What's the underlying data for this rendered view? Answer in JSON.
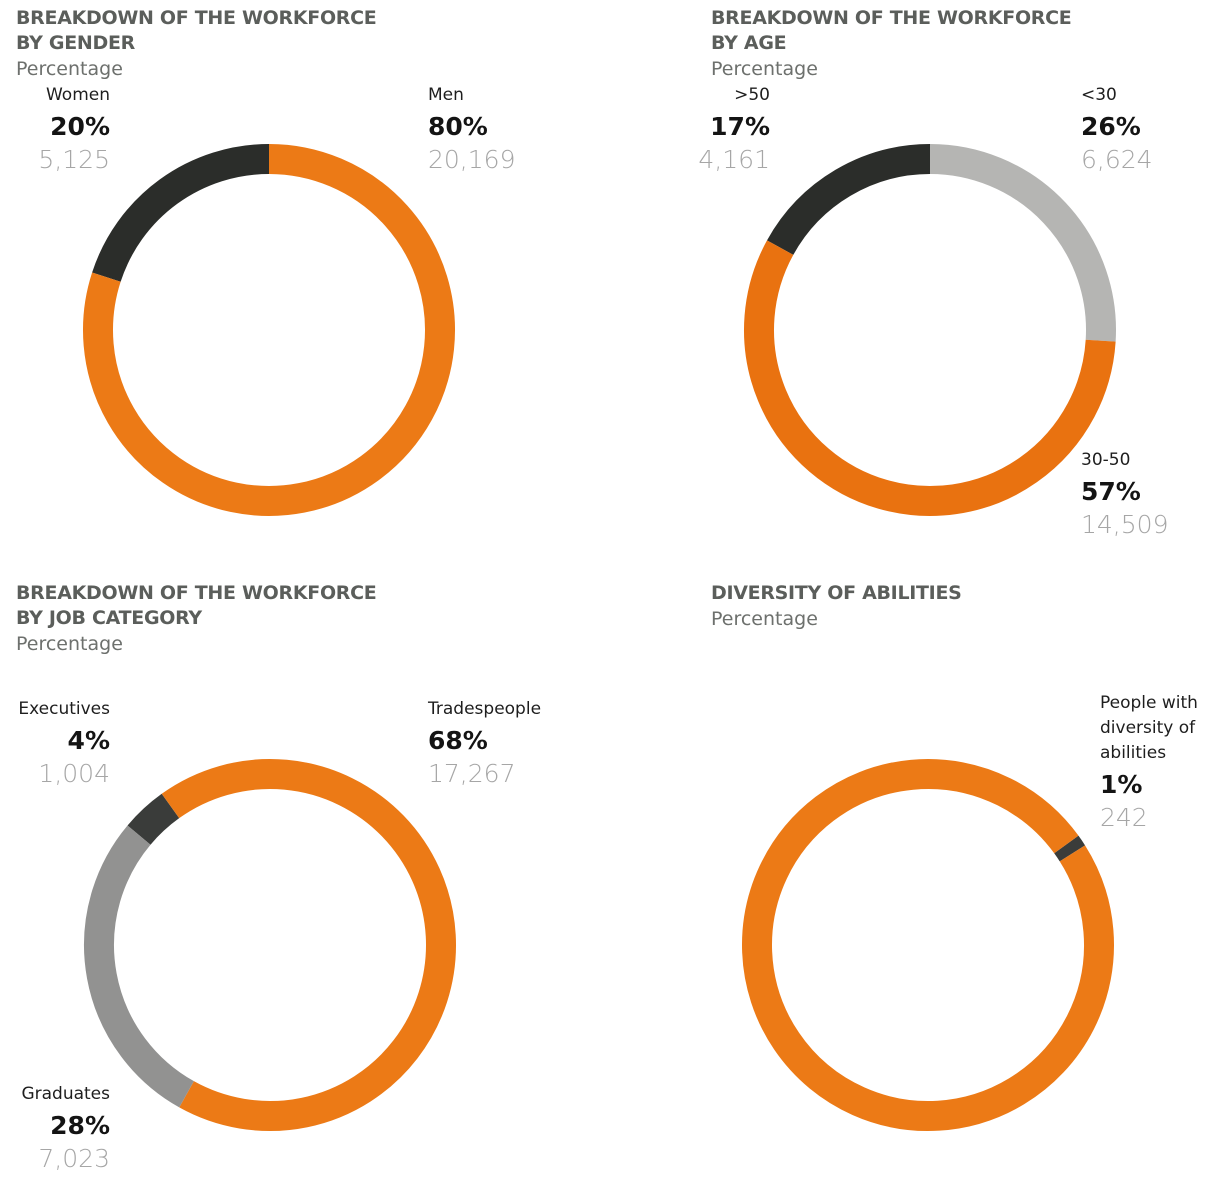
{
  "chart_data": [
    {
      "type": "donut",
      "title": "BREAKDOWN OF THE WORKFORCE BY GENDER",
      "subtitle": "Percentage",
      "categories": [
        "Women",
        "Men"
      ],
      "values": [
        20,
        80
      ],
      "value_labels": [
        "20%",
        "80%"
      ],
      "counts": [
        {
          "value": 5125,
          "label": "5,125"
        },
        {
          "value": 20169,
          "label": "20,169"
        }
      ],
      "colors": [
        "#2b2d2a",
        "#ec7a16"
      ]
    },
    {
      "type": "donut",
      "title": "BREAKDOWN OF THE WORKFORCE BY AGE",
      "subtitle": "Percentage",
      "categories": [
        ">50",
        "<30",
        "30-50"
      ],
      "values": [
        17,
        26,
        57
      ],
      "value_labels": [
        "17%",
        "26%",
        "57%"
      ],
      "counts": [
        {
          "value": 4161,
          "label": "4,161"
        },
        {
          "value": 6624,
          "label": "6,624"
        },
        {
          "value": 14509,
          "label": "14,509"
        }
      ],
      "colors": [
        "#2b2d2a",
        "#b5b5b3",
        "#e97210"
      ]
    },
    {
      "type": "donut",
      "title": "BREAKDOWN OF THE WORKFORCE BY JOB CATEGORY",
      "subtitle": "Percentage",
      "categories": [
        "Executives",
        "Tradespeople",
        "Graduates"
      ],
      "values": [
        4,
        68,
        28
      ],
      "value_labels": [
        "4%",
        "68%",
        "28%"
      ],
      "counts": [
        {
          "value": 1004,
          "label": "1,004"
        },
        {
          "value": 17267,
          "label": "17,267"
        },
        {
          "value": 7023,
          "label": "7,023"
        }
      ],
      "colors": [
        "#3a3c3a",
        "#ec7a16",
        "#929291"
      ]
    },
    {
      "type": "donut",
      "title": "DIVERSITY OF ABILITIES",
      "subtitle": "Percentage",
      "categories": [
        "People with diversity of abilities",
        null
      ],
      "values": [
        1,
        99
      ],
      "value_labels": [
        "1%",
        null
      ],
      "counts": [
        {
          "value": 242,
          "label": "242"
        },
        null
      ],
      "colors": [
        "#3a3c3a",
        "#ec7a16"
      ]
    }
  ]
}
